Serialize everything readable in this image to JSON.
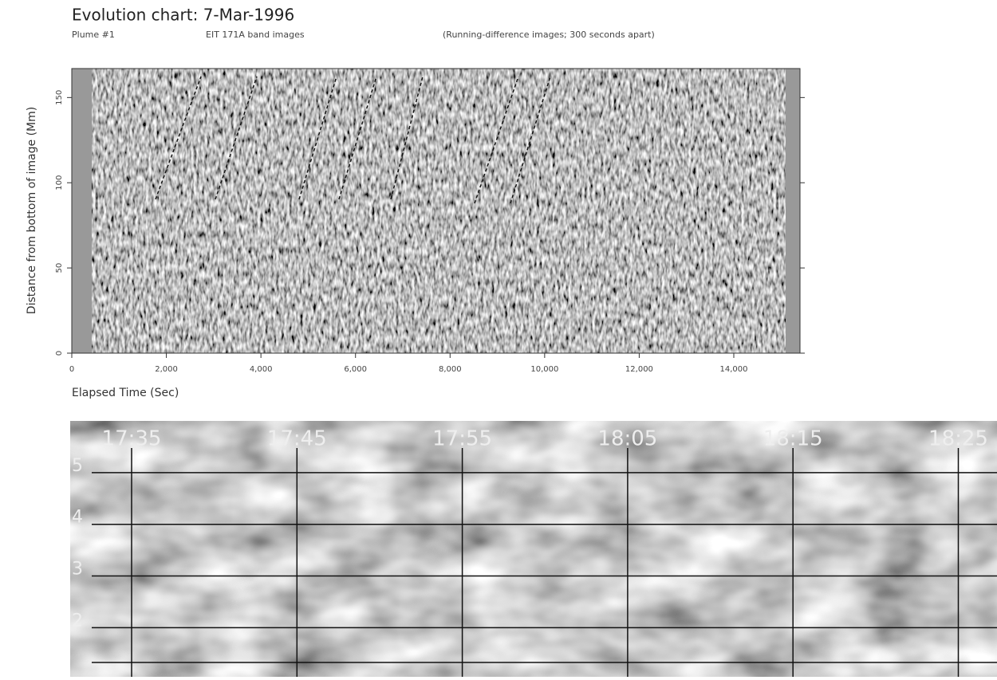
{
  "chart_data": [
    {
      "type": "image",
      "title": "Evolution chart: 7-Mar-1996",
      "subtitle": [
        "Plume #1",
        "EIT 171A band images",
        "(Running-difference images; 300 seconds apart)"
      ],
      "xlabel": "Elapsed Time (Sec)",
      "ylabel": "Distance from bottom of image (Mm)",
      "xlim": [
        0,
        15400
      ],
      "ylim": [
        0,
        167
      ],
      "xticks": [
        0,
        {
          "value": 2000,
          "label": "2,000"
        },
        {
          "value": 4000,
          "label": "4,000"
        },
        {
          "value": 6000,
          "label": "6,000"
        },
        {
          "value": 8000,
          "label": "8,000"
        },
        {
          "value": 10000,
          "label": "10,000"
        },
        {
          "value": 12000,
          "label": "12,000"
        },
        {
          "value": 14000,
          "label": "14,000"
        }
      ],
      "yticks": [
        0,
        50,
        100,
        150
      ]
    },
    {
      "type": "image",
      "categories": [
        "17:35",
        "17:45",
        "17:55",
        "18:05",
        "18:15",
        "18:25"
      ],
      "ylim": [
        1.05,
        6.0
      ],
      "yticks": [
        2,
        3,
        4,
        5
      ],
      "grid": true
    }
  ]
}
